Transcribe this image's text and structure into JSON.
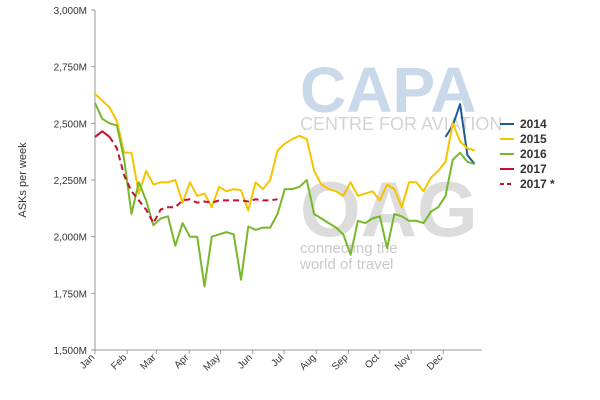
{
  "chart_data": {
    "type": "line",
    "title": "",
    "ylabel": "ASKs per week",
    "xlabel": "",
    "ylim": [
      1500,
      3000
    ],
    "xlim": [
      0,
      53
    ],
    "y_ticks": [
      {
        "value": 1500,
        "label": "1,500M"
      },
      {
        "value": 1750,
        "label": "1,750M"
      },
      {
        "value": 2000,
        "label": "2,000M"
      },
      {
        "value": 2250,
        "label": "2,250M"
      },
      {
        "value": 2500,
        "label": "2,500M"
      },
      {
        "value": 2750,
        "label": "2,750M"
      },
      {
        "value": 3000,
        "label": "3,000M"
      }
    ],
    "x_ticks": [
      {
        "value": 0,
        "label": "Jan"
      },
      {
        "value": 4.4,
        "label": "Feb"
      },
      {
        "value": 8.4,
        "label": "Mar"
      },
      {
        "value": 12.9,
        "label": "Apr"
      },
      {
        "value": 17.2,
        "label": "May"
      },
      {
        "value": 21.6,
        "label": "Jun"
      },
      {
        "value": 25.9,
        "label": "Jul"
      },
      {
        "value": 30.3,
        "label": "Aug"
      },
      {
        "value": 34.7,
        "label": "Sep"
      },
      {
        "value": 39.0,
        "label": "Oct"
      },
      {
        "value": 43.3,
        "label": "Nov"
      },
      {
        "value": 47.7,
        "label": "Dec"
      }
    ],
    "grid": false,
    "legend_position": "right",
    "series": [
      {
        "name": "2014",
        "color": "#1f5a96",
        "style": "solid",
        "x": [
          48,
          49,
          50,
          51,
          52
        ],
        "y": [
          2440,
          2490,
          2585,
          2360,
          2320
        ]
      },
      {
        "name": "2015",
        "color": "#f5c400",
        "style": "solid",
        "x": [
          0,
          1,
          2,
          3,
          4,
          5,
          6,
          7,
          8,
          9,
          10,
          11,
          12,
          13,
          14,
          15,
          16,
          17,
          18,
          19,
          20,
          21,
          22,
          23,
          24,
          25,
          26,
          27,
          28,
          29,
          30,
          31,
          32,
          33,
          34,
          35,
          36,
          37,
          38,
          39,
          40,
          41,
          42,
          43,
          44,
          45,
          46,
          47,
          48,
          49,
          50,
          51,
          52
        ],
        "y": [
          2630,
          2600,
          2570,
          2510,
          2370,
          2370,
          2190,
          2290,
          2230,
          2240,
          2240,
          2250,
          2150,
          2240,
          2180,
          2190,
          2130,
          2220,
          2200,
          2210,
          2205,
          2115,
          2240,
          2210,
          2250,
          2380,
          2410,
          2430,
          2445,
          2430,
          2290,
          2230,
          2210,
          2200,
          2180,
          2240,
          2180,
          2190,
          2200,
          2160,
          2230,
          2210,
          2130,
          2240,
          2240,
          2200,
          2260,
          2290,
          2330,
          2500,
          2420,
          2390,
          2380
        ]
      },
      {
        "name": "2016",
        "color": "#77b82a",
        "style": "solid",
        "x": [
          0,
          1,
          2,
          3,
          4,
          5,
          6,
          7,
          8,
          9,
          10,
          11,
          12,
          13,
          14,
          15,
          16,
          17,
          18,
          19,
          20,
          21,
          22,
          23,
          24,
          25,
          26,
          27,
          28,
          29,
          30,
          31,
          32,
          33,
          34,
          35,
          36,
          37,
          38,
          39,
          40,
          41,
          42,
          43,
          44,
          45,
          46,
          47,
          48,
          49,
          50,
          51,
          52
        ],
        "y": [
          2590,
          2520,
          2500,
          2490,
          2340,
          2100,
          2240,
          2160,
          2050,
          2080,
          2090,
          1960,
          2060,
          2000,
          2000,
          1780,
          2000,
          2010,
          2020,
          2010,
          1810,
          2045,
          2030,
          2040,
          2040,
          2100,
          2210,
          2210,
          2220,
          2250,
          2100,
          2080,
          2060,
          2040,
          2010,
          1920,
          2070,
          2060,
          2080,
          2090,
          1950,
          2100,
          2090,
          2070,
          2070,
          2060,
          2110,
          2130,
          2180,
          2340,
          2370,
          2330,
          2320
        ]
      },
      {
        "name": "2017",
        "color": "#c8102e",
        "style": "solid",
        "x": [
          0,
          1,
          2
        ],
        "y": [
          2440,
          2465,
          2440
        ]
      },
      {
        "name": "2017 *",
        "color": "#c8102e",
        "style": "dashed",
        "x": [
          2,
          3,
          4,
          5,
          6,
          7,
          8,
          9,
          10,
          11,
          12,
          13,
          14,
          15,
          16,
          17,
          18,
          19,
          20,
          21,
          22,
          23,
          24,
          25
        ],
        "y": [
          2440,
          2390,
          2270,
          2200,
          2160,
          2120,
          2060,
          2120,
          2130,
          2130,
          2160,
          2165,
          2150,
          2155,
          2150,
          2160,
          2160,
          2160,
          2160,
          2155,
          2165,
          2160,
          2160,
          2165
        ]
      }
    ]
  },
  "watermark": {
    "brand": "CAPA",
    "brand_sub": "CENTRE FOR AVIATION",
    "partner": "OAG",
    "tagline_1": "connecting the",
    "tagline_2": "world of travel",
    "brand_color": "#c9d9ea",
    "partner_color": "#dcdcdc"
  }
}
